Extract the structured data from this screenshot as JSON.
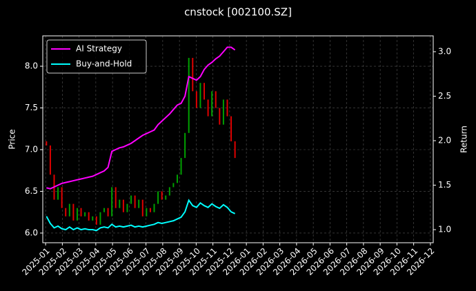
{
  "chart_data": {
    "type": "candlestick_returns",
    "title": "cnstock [002100.SZ]",
    "y_label": "Price",
    "y2_label": "Return",
    "xlim": [
      -0.17,
      23.17
    ],
    "xticks": [
      {
        "value": 0,
        "label": "2025-01"
      },
      {
        "value": 1,
        "label": "2025-02"
      },
      {
        "value": 2,
        "label": "2025-03"
      },
      {
        "value": 3,
        "label": "2025-04"
      },
      {
        "value": 4,
        "label": "2025-05"
      },
      {
        "value": 5,
        "label": "2025-06"
      },
      {
        "value": 6,
        "label": "2025-07"
      },
      {
        "value": 7,
        "label": "2025-08"
      },
      {
        "value": 8,
        "label": "2025-09"
      },
      {
        "value": 9,
        "label": "2025-10"
      },
      {
        "value": 10,
        "label": "2025-11"
      },
      {
        "value": 11,
        "label": "2025-12"
      },
      {
        "value": 12,
        "label": "2026-01"
      },
      {
        "value": 13,
        "label": "2026-02"
      },
      {
        "value": 14,
        "label": "2026-03"
      },
      {
        "value": 15,
        "label": "2026-04"
      },
      {
        "value": 16,
        "label": "2026-05"
      },
      {
        "value": 17,
        "label": "2026-06"
      },
      {
        "value": 18,
        "label": "2026-07"
      },
      {
        "value": 19,
        "label": "2026-08"
      },
      {
        "value": 20,
        "label": "2026-09"
      },
      {
        "value": 21,
        "label": "2026-10"
      },
      {
        "value": 22,
        "label": "2026-11"
      },
      {
        "value": 23,
        "label": "2026-12"
      }
    ],
    "ylim": [
      5.884,
      8.364
    ],
    "yticks": [
      {
        "value": 6,
        "label": "6.0"
      },
      6.5,
      {
        "value": 7,
        "label": "7.0"
      },
      7.5,
      {
        "value": 8,
        "label": "8.0"
      }
    ],
    "y2lim": [
      0.853,
      3.178
    ],
    "y2ticks": [
      {
        "value": 1,
        "label": "1.0"
      },
      1.5,
      {
        "value": 2,
        "label": "2.0"
      },
      2.5,
      {
        "value": 3,
        "label": "3.0"
      }
    ],
    "grid": true,
    "legend": "upper left",
    "up_color": "#00a000",
    "down_color": "#e00000",
    "x": [
      0.05,
      0.28,
      0.51,
      0.74,
      0.97,
      1.2,
      1.43,
      1.66,
      1.89,
      2.12,
      2.35,
      2.58,
      2.81,
      3.04,
      3.27,
      3.5,
      3.73,
      3.96,
      4.19,
      4.42,
      4.65,
      4.88,
      5.11,
      5.34,
      5.57,
      5.8,
      6.03,
      6.26,
      6.49,
      6.72,
      6.95,
      7.18,
      7.41,
      7.64,
      7.87,
      8.1,
      8.33,
      8.56,
      8.79,
      9.02,
      9.25,
      9.48,
      9.71,
      9.94,
      10.17,
      10.4,
      10.63,
      10.86,
      11.09,
      11.32
    ],
    "open": [
      7.1,
      7.05,
      6.7,
      6.4,
      6.55,
      6.3,
      6.2,
      6.35,
      6.15,
      6.3,
      6.2,
      6.25,
      6.15,
      6.2,
      6.1,
      6.25,
      6.3,
      6.2,
      6.55,
      6.3,
      6.4,
      6.25,
      6.35,
      6.45,
      6.3,
      6.4,
      6.2,
      6.3,
      6.25,
      6.35,
      6.5,
      6.4,
      6.45,
      6.55,
      6.6,
      6.7,
      6.9,
      7.2,
      8.1,
      7.7,
      7.5,
      7.8,
      7.6,
      7.4,
      7.7,
      7.5,
      7.3,
      7.6,
      7.4,
      7.1
    ],
    "close": [
      7.05,
      6.7,
      6.4,
      6.55,
      6.3,
      6.2,
      6.35,
      6.15,
      6.3,
      6.2,
      6.25,
      6.15,
      6.2,
      6.1,
      6.25,
      6.3,
      6.2,
      6.55,
      6.3,
      6.4,
      6.25,
      6.35,
      6.45,
      6.3,
      6.4,
      6.2,
      6.3,
      6.25,
      6.35,
      6.5,
      6.4,
      6.45,
      6.55,
      6.6,
      6.7,
      6.9,
      7.2,
      8.1,
      7.7,
      7.5,
      7.8,
      7.6,
      7.4,
      7.7,
      7.5,
      7.3,
      7.6,
      7.4,
      7.1,
      6.9
    ],
    "series": [
      {
        "name": "AI Strategy",
        "color": "#ff00ff",
        "axis": "y2",
        "values": [
          1.47,
          1.46,
          1.48,
          1.5,
          1.52,
          1.53,
          1.54,
          1.55,
          1.56,
          1.57,
          1.58,
          1.59,
          1.6,
          1.62,
          1.64,
          1.66,
          1.7,
          1.88,
          1.9,
          1.92,
          1.93,
          1.95,
          1.97,
          2.0,
          2.03,
          2.06,
          2.08,
          2.1,
          2.12,
          2.18,
          2.22,
          2.26,
          2.3,
          2.35,
          2.4,
          2.42,
          2.5,
          2.72,
          2.7,
          2.68,
          2.72,
          2.8,
          2.85,
          2.88,
          2.92,
          2.95,
          3.0,
          3.05,
          3.05,
          3.02
        ]
      },
      {
        "name": "Buy-and-Hold",
        "color": "#00ffff",
        "axis": "y2",
        "values": [
          1.15,
          1.07,
          1.02,
          1.04,
          1.01,
          1.0,
          1.03,
          1.0,
          1.02,
          1.0,
          1.01,
          1.0,
          1.0,
          0.99,
          1.02,
          1.03,
          1.02,
          1.06,
          1.03,
          1.04,
          1.03,
          1.04,
          1.05,
          1.03,
          1.04,
          1.03,
          1.04,
          1.05,
          1.06,
          1.08,
          1.07,
          1.08,
          1.09,
          1.1,
          1.12,
          1.14,
          1.2,
          1.33,
          1.27,
          1.25,
          1.3,
          1.27,
          1.25,
          1.29,
          1.26,
          1.24,
          1.28,
          1.25,
          1.2,
          1.18
        ]
      }
    ]
  }
}
